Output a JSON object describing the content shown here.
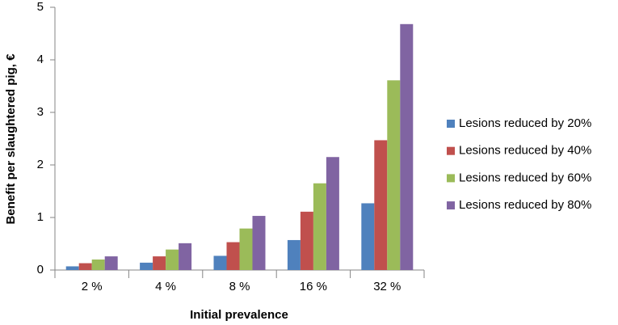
{
  "chart_data": {
    "type": "bar",
    "x_label": "Initial prevalence",
    "y_label": "Benefit per slaughtered pig, €",
    "categories": [
      "2 %",
      "4 %",
      "8 %",
      "16 %",
      "32 %"
    ],
    "series": [
      {
        "name": "Lesions reduced by 20%",
        "color": "#4f81bd",
        "values": [
          0.07,
          0.14,
          0.27,
          0.57,
          1.27
        ]
      },
      {
        "name": "Lesions reduced by 40%",
        "color": "#c0504d",
        "values": [
          0.13,
          0.26,
          0.53,
          1.11,
          2.47
        ]
      },
      {
        "name": "Lesions reduced by 60%",
        "color": "#9bbb59",
        "values": [
          0.2,
          0.39,
          0.79,
          1.65,
          3.61
        ]
      },
      {
        "name": "Lesions reduced by 80%",
        "color": "#8064a2",
        "values": [
          0.26,
          0.51,
          1.03,
          2.15,
          4.68
        ]
      }
    ],
    "ylim": [
      0,
      5
    ],
    "yticks": [
      0,
      1,
      2,
      3,
      4,
      5
    ],
    "legend": "right"
  }
}
